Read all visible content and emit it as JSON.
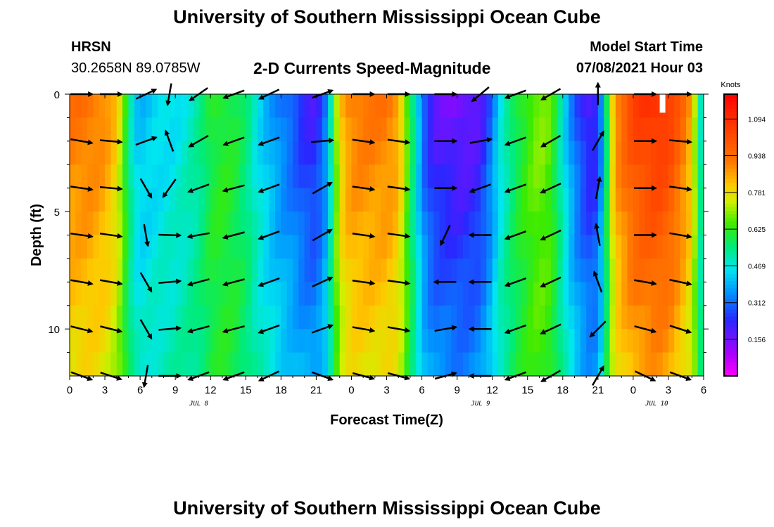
{
  "header": {
    "title": "University of Southern Mississippi Ocean Cube",
    "station_id": "HRSN",
    "station_coords": "30.2658N  89.0785W",
    "plot_title": "2-D Currents Speed-Magnitude",
    "model_start_label": "Model Start Time",
    "model_start_value": "07/08/2021 Hour 03"
  },
  "footer": {
    "title": "University of Southern Mississippi Ocean Cube"
  },
  "chart_data": {
    "type": "heatmap",
    "title": "2-D Currents Speed-Magnitude",
    "xlabel": "Forecast Time(Z)",
    "ylabel": "Depth (ft)",
    "x_start_hour": 0,
    "x_end_hour": 54,
    "x_ticks": [
      0,
      3,
      6,
      9,
      12,
      15,
      18,
      21,
      24,
      27,
      30,
      33,
      36,
      39,
      42,
      45,
      48,
      51,
      54
    ],
    "x_tick_labels": [
      "0",
      "3",
      "6",
      "9",
      "12",
      "15",
      "18",
      "21",
      "0",
      "3",
      "6",
      "9",
      "12",
      "15",
      "18",
      "21",
      "0",
      "3",
      "6"
    ],
    "date_labels": [
      {
        "label": "JUL 8",
        "hour": 11
      },
      {
        "label": "JUL 9",
        "hour": 35
      },
      {
        "label": "JUL 10",
        "hour": 50
      }
    ],
    "ylim": [
      0,
      12
    ],
    "y_ticks": [
      0,
      5,
      10
    ],
    "y_tick_labels": [
      "0",
      "5",
      "10"
    ],
    "colorbar": {
      "units": "Knots",
      "range": [
        0.0,
        1.2
      ],
      "labels": [
        "1.094",
        "0.938",
        "0.781",
        "0.625",
        "0.469",
        "0.312",
        "0.156"
      ],
      "label_values": [
        1.094,
        0.938,
        0.781,
        0.625,
        0.469,
        0.312,
        0.156
      ]
    },
    "speed_profile": {
      "hours": [
        0,
        1,
        2,
        3,
        4,
        4.5,
        5,
        5.5,
        6,
        7,
        8,
        9,
        10,
        11,
        12,
        13,
        14,
        15,
        16,
        17,
        18,
        19,
        20,
        21,
        22,
        22.5,
        23,
        23.5,
        24,
        25,
        26,
        27,
        28,
        28.5,
        29,
        29.5,
        30,
        31,
        32,
        33,
        34,
        35,
        36,
        36.5,
        37,
        38,
        39,
        40,
        41,
        42,
        43,
        43.5,
        44,
        44.5,
        45,
        45.5,
        46,
        46.5,
        47,
        47.5,
        48,
        49,
        50,
        51,
        52,
        53,
        53.5,
        54
      ],
      "surface_speed": [
        0.93,
        0.94,
        0.93,
        0.9,
        0.82,
        0.7,
        0.56,
        0.44,
        0.4,
        0.42,
        0.44,
        0.45,
        0.48,
        0.52,
        0.6,
        0.62,
        0.6,
        0.55,
        0.45,
        0.38,
        0.32,
        0.28,
        0.22,
        0.2,
        0.35,
        0.62,
        0.8,
        0.88,
        0.92,
        0.93,
        0.93,
        0.93,
        0.88,
        0.74,
        0.6,
        0.48,
        0.3,
        0.18,
        0.16,
        0.14,
        0.15,
        0.18,
        0.32,
        0.42,
        0.48,
        0.58,
        0.65,
        0.7,
        0.66,
        0.46,
        0.3,
        0.25,
        0.2,
        0.18,
        0.22,
        0.42,
        0.72,
        0.9,
        0.96,
        1.0,
        1.05,
        1.08,
        1.1,
        1.07,
        0.98,
        0.85,
        0.62,
        0.4
      ]
    },
    "vectors": {
      "depths": [
        0,
        2,
        4,
        6,
        8,
        10,
        12
      ],
      "columns": [
        {
          "hour": 1,
          "angles": [
            0,
            -10,
            -8,
            -8,
            -10,
            -14,
            -20
          ]
        },
        {
          "hour": 3.5,
          "angles": [
            0,
            -5,
            -5,
            -8,
            -10,
            -14,
            -18
          ]
        },
        {
          "hour": 6.5,
          "angles": [
            25,
            20,
            -60,
            -80,
            -60,
            -60,
            -100
          ]
        },
        {
          "hour": 8.5,
          "angles": [
            -100,
            110,
            -125,
            -2,
            5,
            5,
            0
          ]
        },
        {
          "hour": 11,
          "angles": [
            -145,
            -150,
            -160,
            -170,
            -165,
            -165,
            -160
          ]
        },
        {
          "hour": 14,
          "angles": [
            -160,
            -160,
            -165,
            -165,
            -165,
            -165,
            -160
          ]
        },
        {
          "hour": 17,
          "angles": [
            -155,
            -160,
            -160,
            -160,
            -160,
            -160,
            -155
          ]
        },
        {
          "hour": 21.5,
          "angles": [
            20,
            5,
            30,
            30,
            25,
            20,
            -20
          ]
        },
        {
          "hour": 25,
          "angles": [
            0,
            -8,
            -8,
            -8,
            -8,
            -10,
            -15
          ]
        },
        {
          "hour": 28,
          "angles": [
            0,
            -8,
            -8,
            -8,
            -8,
            -10,
            -15
          ]
        },
        {
          "hour": 32,
          "angles": [
            0,
            0,
            0,
            -115,
            180,
            10,
            15
          ]
        },
        {
          "hour": 35,
          "angles": [
            -140,
            10,
            -160,
            180,
            180,
            180,
            180
          ]
        },
        {
          "hour": 38,
          "angles": [
            -160,
            -160,
            -160,
            -160,
            -160,
            -160,
            -160
          ]
        },
        {
          "hour": 41,
          "angles": [
            -150,
            -150,
            -155,
            -155,
            -155,
            -155,
            -150
          ]
        },
        {
          "hour": 45,
          "angles": [
            90,
            60,
            80,
            100,
            110,
            -135,
            60
          ]
        },
        {
          "hour": 49,
          "angles": [
            0,
            0,
            0,
            0,
            -10,
            -15,
            -25
          ]
        },
        {
          "hour": 52,
          "angles": [
            0,
            -5,
            -8,
            -10,
            -12,
            -18,
            -20
          ]
        }
      ]
    },
    "markers": [
      {
        "label": "data-gap",
        "hour": 50.5,
        "depth": 0.3
      }
    ]
  }
}
